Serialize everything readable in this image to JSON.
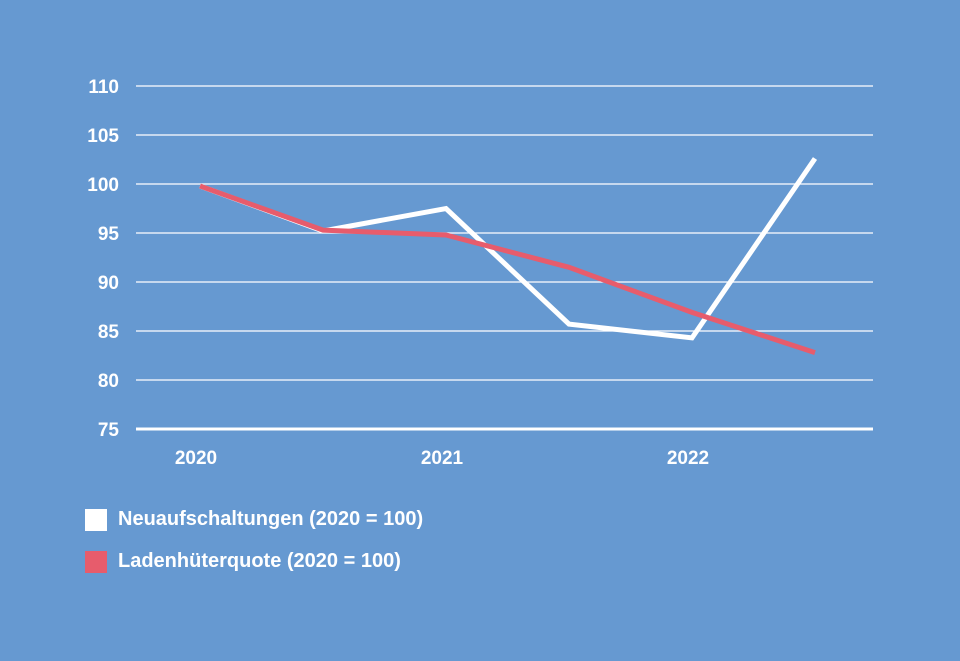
{
  "colors": {
    "background": "#6699d1",
    "axis": "#ffffff",
    "grid": "#ffffff",
    "series_1": "#ffffff",
    "series_2": "#e75c6c"
  },
  "chart_data": {
    "type": "line",
    "x_categories": [
      "2020",
      "2021",
      "2022"
    ],
    "x_points": [
      0,
      0.5,
      1,
      1.5,
      2,
      2.5
    ],
    "ylim": [
      75,
      110
    ],
    "yticks": [
      75,
      80,
      85,
      90,
      95,
      100,
      105,
      110
    ],
    "grid": true,
    "legend_position": "bottom-left",
    "series": [
      {
        "name": "Neuaufschaltungen (2020 = 100)",
        "values": [
          99.8,
          95.2,
          97.5,
          85.7,
          84.3,
          102.6
        ]
      },
      {
        "name": "Ladenhüterquote (2020 = 100)",
        "values": [
          99.8,
          95.3,
          94.8,
          91.5,
          86.9,
          82.8
        ]
      }
    ]
  }
}
